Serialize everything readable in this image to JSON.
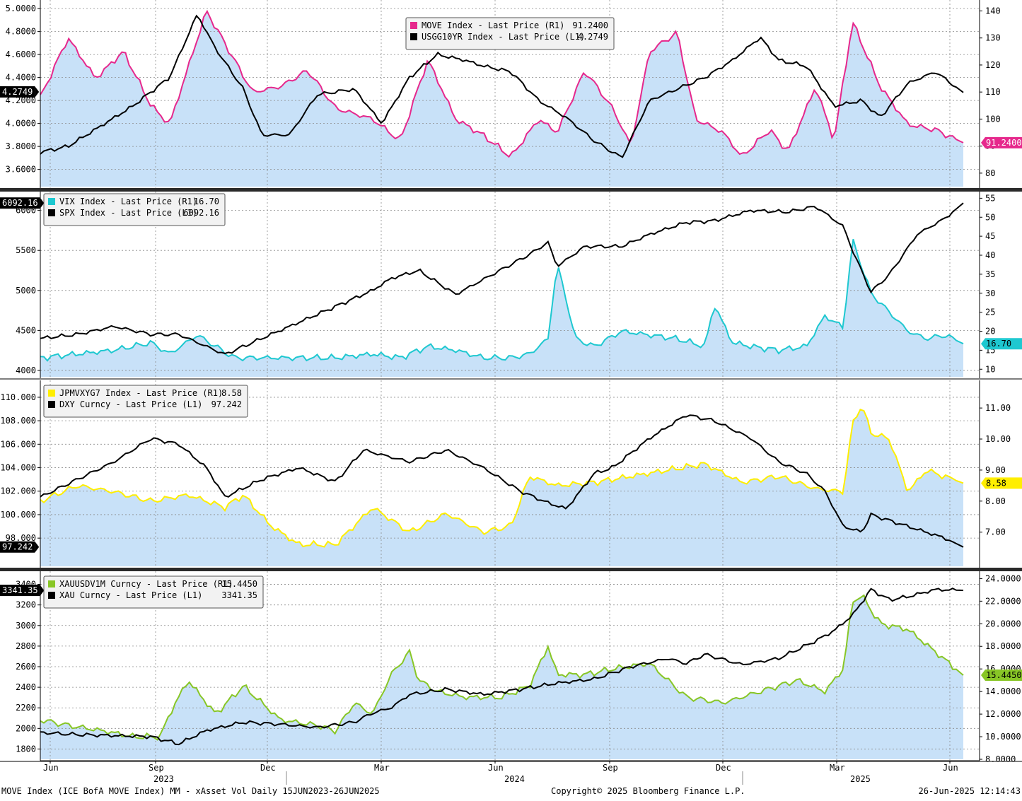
{
  "footer": {
    "left": "MOVE Index (ICE BofA MOVE Index) MM - xAsset Vol  Daily 15JUN2023-26JUN2025",
    "center": "Copyright© 2025 Bloomberg Finance L.P.",
    "right": "26-Jun-2025 12:14:43"
  },
  "x_axis": {
    "months": [
      "Jun",
      "Sep",
      "Dec",
      "Mar",
      "Jun",
      "Sep",
      "Dec",
      "Mar",
      "Jun"
    ],
    "years": [
      "2023",
      "2024",
      "2025"
    ]
  },
  "colors": {
    "fill": "#c8e1f8",
    "grid": "#8a8a8a",
    "left_series": "#000000",
    "move": "#e6288c",
    "vix": "#1ec8d0",
    "fx_vol": "#ffee00",
    "gold_vol": "#88c626"
  },
  "chart_data": [
    {
      "type": "line",
      "legend": [
        {
          "label": "MOVE Index - Last Price (R1)",
          "value": "91.2400",
          "color": "#e6288c"
        },
        {
          "label": "USGG10YR Index - Last Price (L1)",
          "value": "4.2749",
          "color": "#000000"
        }
      ],
      "left_ticks": [
        "3.6000",
        "3.8000",
        "4.0000",
        "4.2000",
        "4.4000",
        "4.6000",
        "4.8000",
        "5.0000"
      ],
      "right_ticks": [
        "80",
        "90",
        "100",
        "110",
        "120",
        "130",
        "140"
      ],
      "left_last": "4.2749",
      "right_last": "91.2400",
      "left_ylim": [
        3.45,
        5.05
      ],
      "right_ylim": [
        75,
        143
      ],
      "series": [
        {
          "name": "USGG10YR Index",
          "axis": "left",
          "x": [
            0.0,
            0.03,
            0.06,
            0.1,
            0.14,
            0.17,
            0.19,
            0.22,
            0.24,
            0.27,
            0.3,
            0.34,
            0.37,
            0.4,
            0.43,
            0.46,
            0.48,
            0.51,
            0.54,
            0.57,
            0.6,
            0.63,
            0.66,
            0.69,
            0.72,
            0.75,
            0.78,
            0.8,
            0.83,
            0.86,
            0.89,
            0.91,
            0.94,
            0.97,
            1.0
          ],
          "y": [
            3.75,
            3.8,
            3.95,
            4.15,
            4.4,
            4.95,
            4.65,
            4.3,
            3.9,
            3.9,
            4.25,
            4.3,
            4.0,
            4.4,
            4.6,
            4.55,
            4.5,
            4.45,
            4.2,
            4.05,
            3.85,
            3.7,
            4.2,
            4.3,
            4.4,
            4.55,
            4.75,
            4.55,
            4.5,
            4.15,
            4.2,
            4.05,
            4.35,
            4.45,
            4.27
          ]
        },
        {
          "name": "MOVE Index",
          "axis": "right",
          "x": [
            0.0,
            0.03,
            0.06,
            0.09,
            0.12,
            0.14,
            0.18,
            0.2,
            0.23,
            0.26,
            0.29,
            0.32,
            0.36,
            0.39,
            0.42,
            0.45,
            0.48,
            0.51,
            0.54,
            0.56,
            0.59,
            0.62,
            0.64,
            0.66,
            0.69,
            0.71,
            0.74,
            0.76,
            0.79,
            0.81,
            0.84,
            0.86,
            0.88,
            0.91,
            0.94,
            0.97,
            1.0
          ],
          "y": [
            108,
            130,
            115,
            125,
            105,
            98,
            140,
            128,
            110,
            112,
            118,
            104,
            100,
            92,
            122,
            100,
            94,
            86,
            100,
            95,
            118,
            104,
            90,
            125,
            132,
            100,
            95,
            86,
            96,
            88,
            112,
            92,
            136,
            112,
            98,
            96,
            91.24
          ]
        }
      ]
    },
    {
      "type": "line",
      "legend": [
        {
          "label": "VIX Index - Last Price (R1)",
          "value": "16.70",
          "color": "#1ec8d0"
        },
        {
          "label": "SPX Index - Last Price (L1)",
          "value": "6092.16",
          "color": "#000000"
        }
      ],
      "left_ticks": [
        "4000",
        "4500",
        "5000",
        "5500",
        "6000"
      ],
      "right_ticks": [
        "10",
        "15",
        "20",
        "25",
        "30",
        "35",
        "40",
        "45",
        "50",
        "55"
      ],
      "left_last": "6092.16",
      "right_last": "16.70",
      "left_ylim": [
        3920,
        6200
      ],
      "right_ylim": [
        8,
        56
      ],
      "series": [
        {
          "name": "SPX Index",
          "axis": "left",
          "x": [
            0.0,
            0.04,
            0.08,
            0.12,
            0.15,
            0.18,
            0.2,
            0.24,
            0.28,
            0.32,
            0.36,
            0.38,
            0.41,
            0.45,
            0.49,
            0.53,
            0.55,
            0.56,
            0.59,
            0.63,
            0.66,
            0.7,
            0.73,
            0.77,
            0.81,
            0.84,
            0.87,
            0.88,
            0.9,
            0.92,
            0.95,
            0.98,
            1.0
          ],
          "y": [
            4400,
            4450,
            4550,
            4450,
            4450,
            4300,
            4200,
            4400,
            4600,
            4800,
            5000,
            5150,
            5250,
            4950,
            5200,
            5450,
            5600,
            5300,
            5550,
            5550,
            5700,
            5850,
            5870,
            6000,
            5980,
            6050,
            5800,
            5500,
            4980,
            5200,
            5700,
            5900,
            6092.16
          ]
        },
        {
          "name": "VIX Index",
          "axis": "right",
          "x": [
            0.0,
            0.04,
            0.08,
            0.12,
            0.14,
            0.17,
            0.19,
            0.21,
            0.24,
            0.28,
            0.32,
            0.36,
            0.39,
            0.42,
            0.45,
            0.48,
            0.51,
            0.53,
            0.55,
            0.56,
            0.58,
            0.6,
            0.63,
            0.66,
            0.69,
            0.72,
            0.73,
            0.75,
            0.77,
            0.8,
            0.83,
            0.85,
            0.87,
            0.88,
            0.9,
            0.92,
            0.94,
            0.96,
            0.98,
            1.0
          ],
          "y": [
            13,
            14,
            15,
            17,
            14,
            19,
            16,
            13,
            13,
            13,
            13,
            14,
            13,
            16,
            15,
            13,
            13,
            14,
            18,
            38,
            18,
            16,
            20,
            19,
            18,
            16,
            27,
            17,
            16,
            15,
            16,
            24,
            21,
            44,
            30,
            25,
            20,
            18,
            19,
            16.7
          ]
        }
      ]
    },
    {
      "type": "line",
      "legend": [
        {
          "label": "JPMVXYG7 Index - Last Price (R1)",
          "value": "8.58",
          "color": "#ffee00"
        },
        {
          "label": "DXY Curncy - Last Price (L1)",
          "value": "97.242",
          "color": "#000000"
        }
      ],
      "left_ticks": [
        "98.000",
        "100.000",
        "102.000",
        "104.000",
        "106.000",
        "108.000",
        "110.000"
      ],
      "right_ticks": [
        "7.00",
        "8.00",
        "9.00",
        "10.00",
        "11.00"
      ],
      "left_last": "97.242",
      "right_last": "8.58",
      "left_ylim": [
        95.6,
        111.2
      ],
      "right_ylim": [
        5.9,
        11.8
      ],
      "series": [
        {
          "name": "DXY Curncy",
          "axis": "left",
          "x": [
            0.0,
            0.04,
            0.08,
            0.12,
            0.15,
            0.18,
            0.2,
            0.24,
            0.28,
            0.32,
            0.35,
            0.4,
            0.44,
            0.48,
            0.52,
            0.55,
            0.57,
            0.6,
            0.62,
            0.66,
            0.7,
            0.73,
            0.77,
            0.8,
            0.83,
            0.85,
            0.87,
            0.89,
            0.9,
            0.92,
            0.94,
            0.96,
            0.98,
            1.0
          ],
          "y": [
            101.5,
            103.0,
            104.5,
            106.5,
            106.0,
            104.0,
            101.5,
            103.0,
            104.0,
            102.8,
            105.5,
            104.5,
            105.5,
            104.0,
            102.0,
            101.0,
            100.5,
            103.5,
            104.0,
            106.5,
            108.5,
            108.0,
            106.5,
            104.5,
            103.5,
            102.0,
            99.0,
            98.5,
            100.0,
            99.5,
            99.0,
            98.5,
            98.0,
            97.24
          ]
        },
        {
          "name": "JPMVXYG7 Index",
          "axis": "right",
          "x": [
            0.0,
            0.04,
            0.08,
            0.12,
            0.16,
            0.2,
            0.22,
            0.25,
            0.28,
            0.32,
            0.36,
            0.4,
            0.44,
            0.48,
            0.51,
            0.53,
            0.56,
            0.6,
            0.64,
            0.68,
            0.72,
            0.76,
            0.8,
            0.84,
            0.87,
            0.88,
            0.89,
            0.9,
            0.92,
            0.94,
            0.96,
            1.0
          ],
          "y": [
            8.0,
            8.5,
            8.3,
            8.0,
            8.2,
            7.8,
            8.2,
            7.2,
            6.6,
            6.6,
            7.8,
            7.0,
            7.6,
            7.0,
            7.2,
            8.8,
            8.5,
            8.6,
            8.8,
            9.0,
            9.2,
            8.6,
            8.8,
            8.4,
            8.3,
            10.5,
            11.1,
            10.2,
            10.0,
            8.3,
            9.0,
            8.58
          ]
        }
      ]
    },
    {
      "type": "line",
      "legend": [
        {
          "label": "XAUUSDV1M Curncy - Last Price (R1)",
          "value": "15.4450",
          "color": "#88c626"
        },
        {
          "label": "XAU Curncy - Last Price (L1)",
          "value": "3341.35",
          "color": "#000000"
        }
      ],
      "left_ticks": [
        "1800",
        "2000",
        "2200",
        "2400",
        "2600",
        "2800",
        "3000",
        "3200",
        "3400"
      ],
      "right_ticks": [
        "8.0000",
        "10.0000",
        "12.0000",
        "14.0000",
        "16.0000",
        "18.0000",
        "20.0000",
        "22.0000",
        "24.0000"
      ],
      "left_last": "3341.35",
      "right_last": "15.4450",
      "left_ylim": [
        1700,
        3500
      ],
      "right_ylim": [
        8.0,
        24.4
      ],
      "series": [
        {
          "name": "XAU Curncy",
          "axis": "left",
          "x": [
            0.0,
            0.04,
            0.08,
            0.12,
            0.15,
            0.18,
            0.22,
            0.26,
            0.3,
            0.34,
            0.36,
            0.38,
            0.4,
            0.44,
            0.48,
            0.52,
            0.56,
            0.6,
            0.64,
            0.68,
            0.7,
            0.72,
            0.76,
            0.8,
            0.84,
            0.86,
            0.88,
            0.9,
            0.92,
            0.94,
            0.97,
            1.0
          ],
          "y": [
            1960,
            1940,
            1930,
            1920,
            1850,
            1980,
            2060,
            2040,
            2010,
            2060,
            2150,
            2200,
            2330,
            2380,
            2330,
            2380,
            2440,
            2480,
            2600,
            2680,
            2630,
            2720,
            2620,
            2680,
            2850,
            2950,
            3100,
            3350,
            3250,
            3280,
            3350,
            3341.35
          ]
        },
        {
          "name": "XAUUSDV1M Curncy",
          "axis": "right",
          "x": [
            0.0,
            0.03,
            0.07,
            0.1,
            0.13,
            0.14,
            0.16,
            0.19,
            0.22,
            0.26,
            0.3,
            0.32,
            0.34,
            0.36,
            0.38,
            0.4,
            0.41,
            0.43,
            0.46,
            0.5,
            0.53,
            0.55,
            0.56,
            0.59,
            0.62,
            0.66,
            0.7,
            0.74,
            0.78,
            0.82,
            0.85,
            0.87,
            0.88,
            0.89,
            0.91,
            0.94,
            0.97,
            1.0
          ],
          "y": [
            11.5,
            11.0,
            10.5,
            10.0,
            10.0,
            12.0,
            15.0,
            12.0,
            14.5,
            11.5,
            11.0,
            10.5,
            13.0,
            12.0,
            15.5,
            17.5,
            15.0,
            14.0,
            13.5,
            13.5,
            14.5,
            18.0,
            15.5,
            15.5,
            16.0,
            16.5,
            13.5,
            13.0,
            14.0,
            15.0,
            14.0,
            16.0,
            22.0,
            22.5,
            20.0,
            19.5,
            17.5,
            15.445
          ]
        }
      ]
    }
  ]
}
